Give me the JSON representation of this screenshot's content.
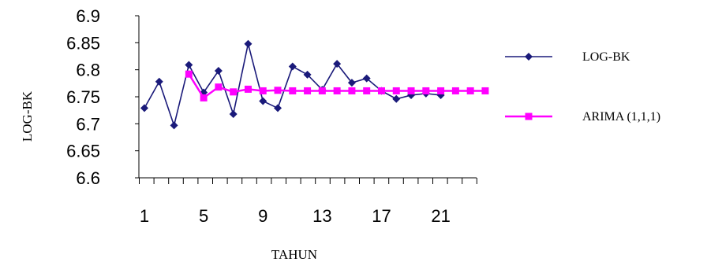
{
  "chart_data": {
    "type": "line",
    "xlabel": "TAHUN",
    "ylabel": "LOG-BK",
    "x": [
      1,
      2,
      3,
      4,
      5,
      6,
      7,
      8,
      9,
      10,
      11,
      12,
      13,
      14,
      15,
      16,
      17,
      18,
      19,
      20,
      21,
      22,
      23,
      24
    ],
    "xticks": [
      "1",
      "5",
      "9",
      "13",
      "17",
      "21"
    ],
    "xlim": [
      1,
      24
    ],
    "ylim": [
      6.6,
      6.9
    ],
    "yticks": [
      "6.6",
      "6.65",
      "6.7",
      "6.75",
      "6.8",
      "6.85",
      "6.9"
    ],
    "grid": false,
    "legend_position": "right",
    "series": [
      {
        "name": "LOG-BK",
        "color": "#1a1a7a",
        "marker": "diamond",
        "x": [
          1,
          2,
          3,
          4,
          5,
          6,
          7,
          8,
          9,
          10,
          11,
          12,
          13,
          14,
          15,
          16,
          17,
          18,
          19,
          20,
          21
        ],
        "values": [
          6.729,
          6.778,
          6.697,
          6.809,
          6.758,
          6.798,
          6.718,
          6.848,
          6.742,
          6.729,
          6.806,
          6.791,
          6.763,
          6.811,
          6.776,
          6.784,
          6.761,
          6.746,
          6.753,
          6.756,
          6.753
        ]
      },
      {
        "name": "ARIMA (1,1,1)",
        "color": "#ff00ff",
        "marker": "square",
        "x": [
          4,
          5,
          6,
          7,
          8,
          9,
          10,
          11,
          12,
          13,
          14,
          15,
          16,
          17,
          18,
          19,
          20,
          21,
          22,
          23,
          24
        ],
        "values": [
          6.792,
          6.748,
          6.768,
          6.759,
          6.764,
          6.761,
          6.762,
          6.761,
          6.761,
          6.761,
          6.761,
          6.761,
          6.761,
          6.761,
          6.761,
          6.761,
          6.761,
          6.761,
          6.761,
          6.761,
          6.761
        ]
      }
    ]
  }
}
